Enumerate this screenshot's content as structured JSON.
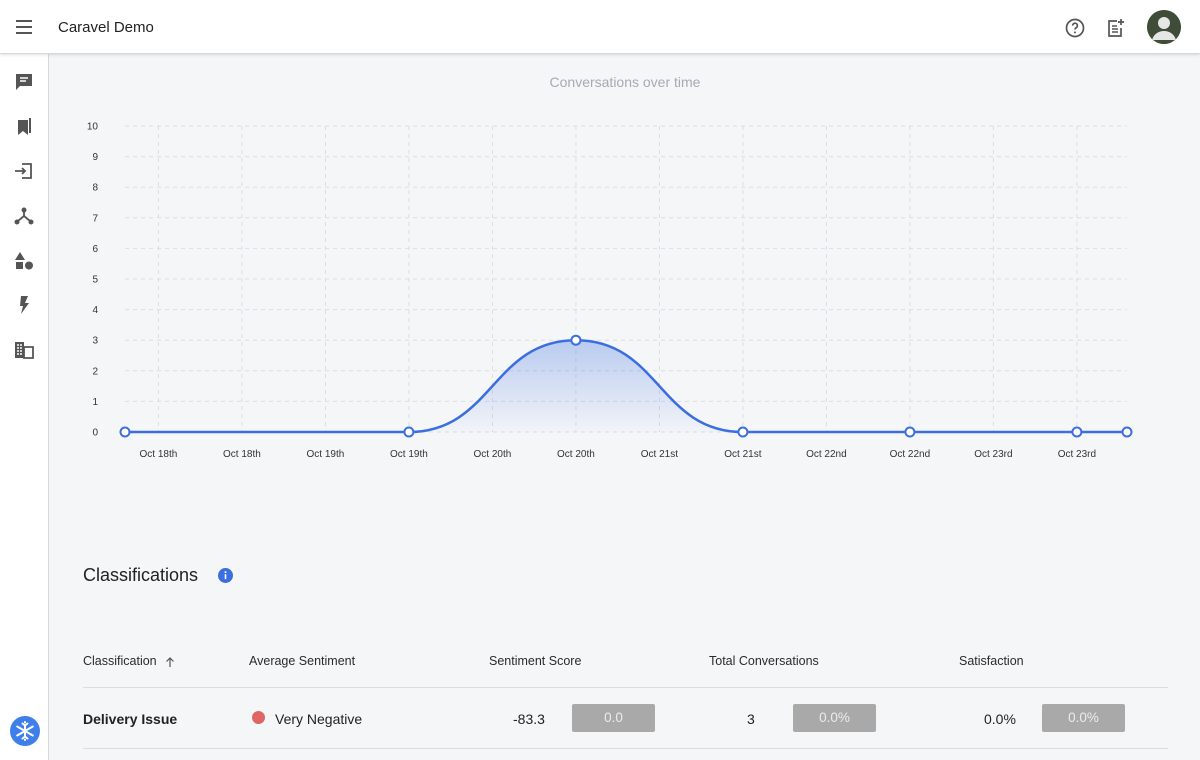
{
  "header": {
    "app_title": "Caravel Demo",
    "menu_icon": "hamburger-menu-icon",
    "help_icon": "help-circle-icon",
    "note_icon": "note-add-icon",
    "avatar_icon": "user-avatar-icon"
  },
  "sidebar": {
    "items": [
      {
        "icon": "chat-icon"
      },
      {
        "icon": "bookmarks-icon"
      },
      {
        "icon": "login-icon"
      },
      {
        "icon": "hub-nodes-icon"
      },
      {
        "icon": "shapes-icon"
      },
      {
        "icon": "lightning-icon"
      },
      {
        "icon": "building-icon"
      }
    ],
    "logo_icon": "snowflake-logo-icon"
  },
  "colors": {
    "accent": "#3b6fe0",
    "negative_dot": "#e06666",
    "bar_gray": "#a9a9a9"
  },
  "chart_data": {
    "type": "area",
    "title": "Conversations over time",
    "xlabel": "",
    "ylabel": "",
    "ylim": [
      0,
      10
    ],
    "yticks": [
      "0",
      "1",
      "2",
      "3",
      "4",
      "5",
      "6",
      "7",
      "8",
      "9",
      "10"
    ],
    "xticks": [
      "Oct 18th",
      "Oct 18th",
      "Oct 19th",
      "Oct 19th",
      "Oct 20th",
      "Oct 20th",
      "Oct 21st",
      "Oct 21st",
      "Oct 22nd",
      "Oct 22nd",
      "Oct 23rd",
      "Oct 23rd"
    ],
    "xrange": [
      -0.4,
      11.6
    ],
    "grid": true,
    "series": [
      {
        "x": [
          -0.4,
          3,
          5,
          7,
          9,
          11,
          11.6
        ],
        "values": [
          0,
          0,
          3,
          0,
          0,
          0,
          0
        ]
      }
    ]
  },
  "classifications": {
    "title": "Classifications",
    "info_icon": "info-icon",
    "sort_icon": "arrow-up-icon",
    "columns": [
      "Classification",
      "Average Sentiment",
      "Sentiment Score",
      "Total Conversations",
      "Satisfaction"
    ],
    "rows": [
      {
        "classification": "Delivery Issue",
        "sentiment": "Very Negative",
        "score": "-83.3",
        "score_bar": "0.0",
        "total": "3",
        "total_bar": "0.0%",
        "satisfaction": "0.0%",
        "satisfaction_bar": "0.0%"
      }
    ]
  }
}
